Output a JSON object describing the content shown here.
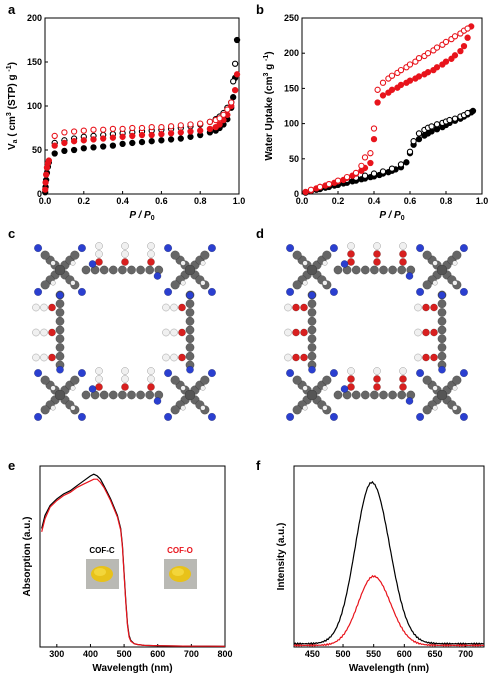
{
  "colors": {
    "black": "#000000",
    "red": "#e8141c",
    "carbon": "#666666",
    "nitrogen": "#2a3fd0",
    "oxygen": "#d81f1f",
    "hydrogen": "#f0f0f0",
    "powder": "#e8c21a"
  },
  "panels": {
    "a": {
      "letter": "a"
    },
    "b": {
      "letter": "b"
    },
    "c": {
      "letter": "c"
    },
    "d": {
      "letter": "d"
    },
    "e": {
      "letter": "e"
    },
    "f": {
      "letter": "f"
    }
  },
  "chart_data": [
    {
      "id": "a",
      "type": "scatter",
      "xlabel_main": "P / P",
      "xlabel_sub": "0",
      "ylabel_main": "V",
      "ylabel_sub": "a",
      "ylabel_rest": "( cm",
      "ylabel_sup": "3",
      "ylabel_tail": "(STP) g",
      "ylabel_sup2": "-1",
      "ylabel_close": ")",
      "xlim": [
        0,
        1.0
      ],
      "ylim": [
        0,
        200
      ],
      "xticks": [
        "0.0",
        "0.2",
        "0.4",
        "0.6",
        "0.8",
        "1.0"
      ],
      "xtick_values": [
        0,
        0.2,
        0.4,
        0.6,
        0.8,
        1.0
      ],
      "yticks": [
        "0",
        "50",
        "100",
        "150",
        "200"
      ],
      "ytick_values": [
        0,
        50,
        100,
        150,
        200
      ],
      "series": [
        {
          "color": "black",
          "filled": true,
          "x": [
            0.001,
            0.003,
            0.006,
            0.01,
            0.015,
            0.02,
            0.05,
            0.1,
            0.15,
            0.2,
            0.25,
            0.3,
            0.35,
            0.4,
            0.45,
            0.5,
            0.55,
            0.6,
            0.65,
            0.7,
            0.75,
            0.8,
            0.85,
            0.88,
            0.9,
            0.92,
            0.94,
            0.96,
            0.97,
            0.98,
            0.99
          ],
          "y": [
            2,
            8,
            16,
            24,
            31,
            36,
            46,
            49,
            50,
            52,
            53,
            54,
            55,
            57,
            58,
            59,
            60,
            61,
            62,
            63,
            65,
            67,
            70,
            72,
            75,
            79,
            85,
            98,
            110,
            132,
            175
          ]
        },
        {
          "color": "black",
          "filled": false,
          "x": [
            0.05,
            0.1,
            0.15,
            0.2,
            0.25,
            0.3,
            0.35,
            0.4,
            0.45,
            0.5,
            0.55,
            0.6,
            0.65,
            0.7,
            0.75,
            0.8,
            0.85,
            0.88,
            0.9,
            0.92,
            0.94,
            0.96,
            0.97,
            0.98
          ],
          "y": [
            58,
            61,
            63,
            65,
            66,
            67,
            68,
            69,
            70,
            71,
            72,
            73,
            74,
            75,
            77,
            79,
            82,
            85,
            88,
            92,
            98,
            104,
            128,
            148
          ]
        },
        {
          "color": "red",
          "filled": true,
          "x": [
            0.001,
            0.003,
            0.006,
            0.01,
            0.015,
            0.02,
            0.05,
            0.1,
            0.15,
            0.2,
            0.25,
            0.3,
            0.35,
            0.4,
            0.45,
            0.5,
            0.55,
            0.6,
            0.65,
            0.7,
            0.75,
            0.8,
            0.85,
            0.88,
            0.9,
            0.92,
            0.94,
            0.96,
            0.98,
            0.99
          ],
          "y": [
            5,
            13,
            22,
            30,
            35,
            38,
            55,
            58,
            60,
            61,
            62,
            63,
            64,
            65,
            66,
            67,
            67,
            68,
            69,
            70,
            71,
            72,
            74,
            76,
            79,
            84,
            90,
            100,
            118,
            136
          ]
        },
        {
          "color": "red",
          "filled": false,
          "x": [
            0.05,
            0.1,
            0.15,
            0.2,
            0.25,
            0.3,
            0.35,
            0.4,
            0.45,
            0.5,
            0.55,
            0.6,
            0.65,
            0.7,
            0.75,
            0.8,
            0.85,
            0.88,
            0.9,
            0.92,
            0.94,
            0.96
          ],
          "y": [
            66,
            70,
            71,
            72,
            73,
            73,
            74,
            74,
            75,
            75,
            76,
            76,
            77,
            78,
            79,
            80,
            82,
            84,
            86,
            90,
            96,
            104
          ]
        }
      ]
    },
    {
      "id": "b",
      "type": "scatter",
      "xlabel_main": "P / P",
      "xlabel_sub": "0",
      "ylabel_main": "Water Uptake (cm",
      "ylabel_sup": "3",
      "ylabel_tail": "g",
      "ylabel_sup2": "-1",
      "ylabel_close": ")",
      "xlim": [
        0,
        1.0
      ],
      "ylim": [
        0,
        250
      ],
      "xticks": [
        "0.0",
        "0.2",
        "0.4",
        "0.6",
        "0.8",
        "1.0"
      ],
      "xtick_values": [
        0,
        0.2,
        0.4,
        0.6,
        0.8,
        1.0
      ],
      "yticks": [
        "0",
        "50",
        "100",
        "150",
        "200",
        "250"
      ],
      "ytick_values": [
        0,
        50,
        100,
        150,
        200,
        250
      ],
      "series": [
        {
          "color": "black",
          "filled": true,
          "x": [
            0.02,
            0.05,
            0.08,
            0.1,
            0.13,
            0.15,
            0.18,
            0.2,
            0.23,
            0.25,
            0.28,
            0.3,
            0.33,
            0.35,
            0.38,
            0.4,
            0.43,
            0.45,
            0.48,
            0.5,
            0.52,
            0.55,
            0.58,
            0.6,
            0.62,
            0.65,
            0.68,
            0.7,
            0.72,
            0.75,
            0.78,
            0.8,
            0.82,
            0.85,
            0.88,
            0.9,
            0.92,
            0.94,
            0.95
          ],
          "y": [
            2,
            4,
            6,
            7,
            9,
            10,
            12,
            13,
            15,
            16,
            18,
            19,
            21,
            22,
            24,
            25,
            27,
            29,
            31,
            33,
            35,
            38,
            45,
            58,
            70,
            78,
            83,
            86,
            89,
            92,
            95,
            98,
            101,
            104,
            107,
            110,
            113,
            116,
            118
          ]
        },
        {
          "color": "black",
          "filled": false,
          "x": [
            0.05,
            0.1,
            0.15,
            0.2,
            0.25,
            0.3,
            0.35,
            0.4,
            0.45,
            0.5,
            0.55,
            0.6,
            0.62,
            0.65,
            0.68,
            0.7,
            0.72,
            0.75,
            0.78,
            0.8,
            0.82,
            0.85,
            0.88,
            0.9,
            0.92
          ],
          "y": [
            5,
            9,
            13,
            17,
            20,
            23,
            26,
            29,
            32,
            36,
            42,
            60,
            75,
            86,
            91,
            94,
            96,
            99,
            101,
            103,
            105,
            107,
            110,
            112,
            115
          ]
        },
        {
          "color": "red",
          "filled": true,
          "x": [
            0.02,
            0.05,
            0.08,
            0.1,
            0.13,
            0.15,
            0.18,
            0.2,
            0.23,
            0.25,
            0.28,
            0.3,
            0.33,
            0.35,
            0.38,
            0.4,
            0.42,
            0.45,
            0.48,
            0.5,
            0.53,
            0.55,
            0.58,
            0.6,
            0.63,
            0.65,
            0.68,
            0.7,
            0.73,
            0.75,
            0.78,
            0.8,
            0.83,
            0.85,
            0.88,
            0.9,
            0.92,
            0.94
          ],
          "y": [
            3,
            5,
            8,
            10,
            12,
            14,
            16,
            18,
            20,
            23,
            26,
            29,
            33,
            37,
            44,
            78,
            130,
            140,
            144,
            148,
            151,
            155,
            158,
            161,
            164,
            167,
            170,
            173,
            176,
            180,
            184,
            188,
            192,
            197,
            203,
            210,
            222,
            238
          ]
        },
        {
          "color": "red",
          "filled": false,
          "x": [
            0.05,
            0.1,
            0.15,
            0.2,
            0.25,
            0.3,
            0.33,
            0.35,
            0.38,
            0.4,
            0.42,
            0.45,
            0.48,
            0.5,
            0.53,
            0.55,
            0.58,
            0.6,
            0.63,
            0.65,
            0.68,
            0.7,
            0.73,
            0.75,
            0.78,
            0.8,
            0.83,
            0.85,
            0.88,
            0.9,
            0.92
          ],
          "y": [
            6,
            10,
            14,
            19,
            24,
            30,
            40,
            52,
            58,
            93,
            148,
            158,
            164,
            168,
            172,
            176,
            180,
            184,
            188,
            193,
            196,
            200,
            204,
            208,
            212,
            216,
            220,
            224,
            228,
            232,
            235
          ]
        }
      ]
    },
    {
      "id": "e",
      "type": "line",
      "xlabel": "Wavelength (nm)",
      "ylabel": "Absorption (a.u.)",
      "xlim": [
        250,
        800
      ],
      "ylim": [
        0,
        1.1
      ],
      "xticks": [
        "300",
        "400",
        "500",
        "600",
        "700",
        "800"
      ],
      "xtick_values": [
        300,
        400,
        500,
        600,
        700,
        800
      ],
      "legend": [
        "COF-C",
        "COF-O"
      ],
      "series": [
        {
          "color": "black",
          "x": [
            255,
            265,
            280,
            300,
            320,
            340,
            360,
            380,
            400,
            410,
            420,
            430,
            440,
            450,
            460,
            470,
            480,
            490,
            495,
            500,
            505,
            510,
            515,
            520,
            530,
            540,
            560,
            600,
            650,
            700,
            750,
            800
          ],
          "y": [
            0.72,
            0.8,
            0.86,
            0.9,
            0.93,
            0.95,
            0.98,
            1.01,
            1.04,
            1.05,
            1.04,
            1.02,
            0.98,
            0.94,
            0.9,
            0.85,
            0.8,
            0.72,
            0.62,
            0.45,
            0.28,
            0.14,
            0.07,
            0.04,
            0.02,
            0.015,
            0.01,
            0.008,
            0.006,
            0.005,
            0.005,
            0.004
          ]
        },
        {
          "color": "red",
          "x": [
            255,
            265,
            280,
            300,
            320,
            340,
            360,
            380,
            400,
            410,
            420,
            430,
            440,
            450,
            460,
            470,
            480,
            490,
            495,
            500,
            505,
            510,
            515,
            520,
            530,
            540,
            560,
            600,
            650,
            700,
            750,
            800
          ],
          "y": [
            0.7,
            0.78,
            0.85,
            0.89,
            0.92,
            0.94,
            0.97,
            0.99,
            1.01,
            1.02,
            1.02,
            1.0,
            0.97,
            0.93,
            0.89,
            0.84,
            0.79,
            0.71,
            0.61,
            0.44,
            0.27,
            0.13,
            0.06,
            0.035,
            0.02,
            0.015,
            0.01,
            0.008,
            0.006,
            0.005,
            0.005,
            0.004
          ]
        }
      ]
    },
    {
      "id": "f",
      "type": "line",
      "xlabel": "Wavelength (nm)",
      "ylabel": "Intensity (a.u.)",
      "xlim": [
        420,
        730
      ],
      "ylim": [
        0,
        1.1
      ],
      "xticks": [
        "450",
        "500",
        "550",
        "600",
        "650",
        "700"
      ],
      "xtick_values": [
        450,
        500,
        550,
        600,
        650,
        700
      ],
      "series": [
        {
          "color": "black",
          "peak": 547,
          "width": 38,
          "height": 0.98,
          "base": 0.02
        },
        {
          "color": "red",
          "peak": 550,
          "width": 36,
          "height": 0.42,
          "base": 0.01
        }
      ]
    }
  ]
}
